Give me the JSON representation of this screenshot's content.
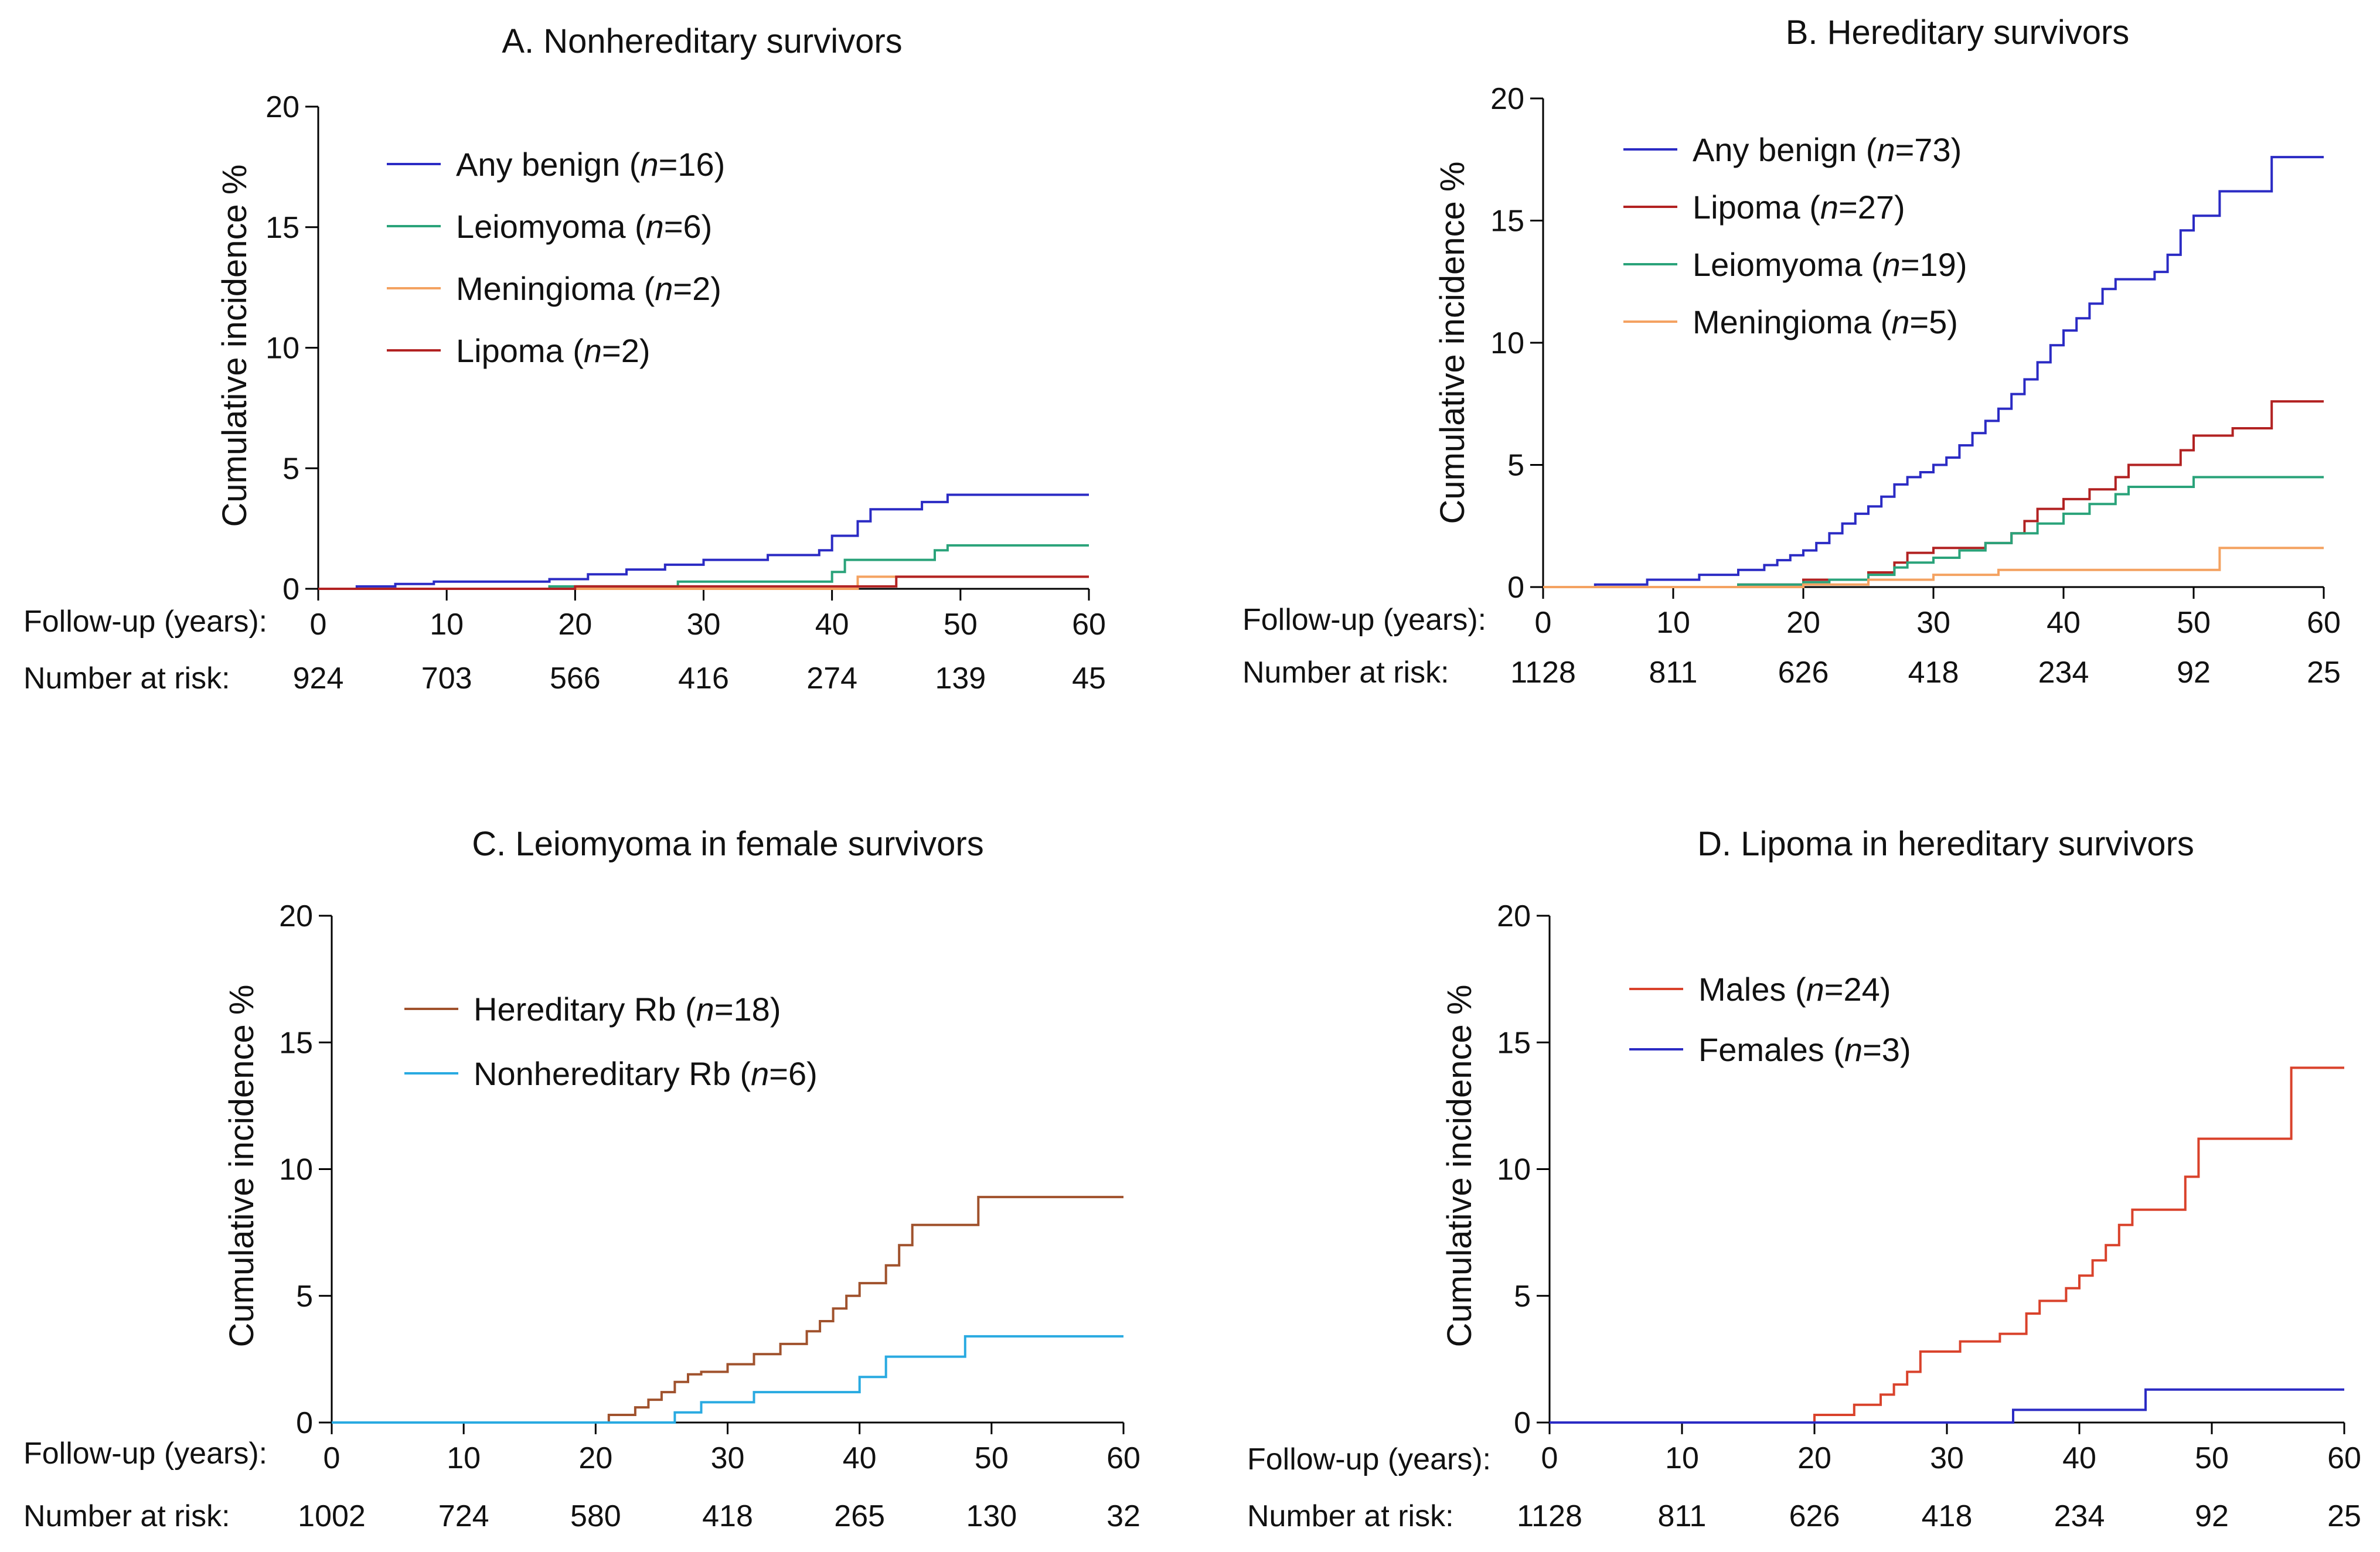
{
  "chart_data": [
    {
      "id": "A",
      "type": "line",
      "title": "A.  Nonhereditary survivors",
      "xlabel": "Follow-up (years):",
      "ylabel": "Cumulative incidence %",
      "xlim": [
        0,
        60
      ],
      "ylim": [
        0,
        20
      ],
      "xticks": [
        0,
        10,
        20,
        30,
        40,
        50,
        60
      ],
      "yticks": [
        0,
        5,
        10,
        15,
        20
      ],
      "risk_label": "Number at risk:",
      "number_at_risk": [
        "924",
        "703",
        "566",
        "416",
        "274",
        "139",
        "45"
      ],
      "series": [
        {
          "name": "Any benign",
          "n": "16",
          "color": "#2b2bc4",
          "x": [
            0,
            3,
            6,
            9,
            18,
            21,
            24,
            27,
            30,
            35,
            39,
            40,
            42,
            43,
            47,
            49,
            60
          ],
          "y": [
            0,
            0.1,
            0.2,
            0.3,
            0.4,
            0.6,
            0.8,
            1.0,
            1.2,
            1.4,
            1.6,
            2.2,
            2.8,
            3.3,
            3.6,
            3.9,
            3.9
          ]
        },
        {
          "name": "Leiomyoma",
          "n": "6",
          "color": "#2aa37a",
          "x": [
            0,
            18,
            28,
            40,
            41,
            48,
            49,
            60
          ],
          "y": [
            0,
            0.1,
            0.3,
            0.7,
            1.2,
            1.6,
            1.8,
            1.8
          ]
        },
        {
          "name": "Meningioma",
          "n": "2",
          "color": "#f4a261",
          "x": [
            0,
            42,
            60
          ],
          "y": [
            0,
            0.5,
            0.5
          ]
        },
        {
          "name": "Lipoma",
          "n": "2",
          "color": "#b22222",
          "x": [
            0,
            20,
            45,
            60
          ],
          "y": [
            0,
            0.1,
            0.5,
            0.5
          ]
        }
      ]
    },
    {
      "id": "B",
      "type": "line",
      "title": "B.  Hereditary survivors",
      "xlabel": "Follow-up (years):",
      "ylabel": "Cumulative incidence %",
      "xlim": [
        0,
        60
      ],
      "ylim": [
        0,
        20
      ],
      "xticks": [
        0,
        10,
        20,
        30,
        40,
        50,
        60
      ],
      "yticks": [
        0,
        5,
        10,
        15,
        20
      ],
      "risk_label": "Number at risk:",
      "number_at_risk": [
        "1128",
        "811",
        "626",
        "418",
        "234",
        "92",
        "25"
      ],
      "series": [
        {
          "name": "Any benign",
          "n": "73",
          "color": "#2b2bc4",
          "x": [
            0,
            4,
            8,
            12,
            15,
            17,
            18,
            19,
            20,
            21,
            22,
            23,
            24,
            25,
            26,
            27,
            28,
            29,
            30,
            31,
            32,
            33,
            34,
            35,
            36,
            37,
            38,
            39,
            40,
            41,
            42,
            43,
            44,
            45,
            46,
            47,
            48,
            49,
            50,
            51,
            52,
            56,
            60
          ],
          "y": [
            0,
            0.1,
            0.3,
            0.5,
            0.7,
            0.9,
            1.1,
            1.3,
            1.5,
            1.8,
            2.2,
            2.6,
            3.0,
            3.3,
            3.7,
            4.2,
            4.5,
            4.7,
            5.0,
            5.3,
            5.8,
            6.3,
            6.8,
            7.3,
            7.9,
            8.5,
            9.2,
            9.9,
            10.5,
            11.0,
            11.6,
            12.2,
            12.6,
            12.6,
            12.6,
            12.9,
            13.6,
            14.6,
            15.2,
            15.2,
            16.2,
            17.6,
            17.6
          ]
        },
        {
          "name": "Lipoma",
          "n": "27",
          "color": "#b22222",
          "x": [
            0,
            15,
            20,
            25,
            27,
            28,
            30,
            34,
            36,
            37,
            38,
            40,
            42,
            44,
            45,
            49,
            50,
            53,
            56,
            60
          ],
          "y": [
            0,
            0.1,
            0.3,
            0.6,
            1.0,
            1.4,
            1.6,
            1.8,
            2.2,
            2.7,
            3.2,
            3.6,
            4.0,
            4.5,
            5.0,
            5.6,
            6.2,
            6.5,
            7.6,
            7.6
          ]
        },
        {
          "name": "Leiomyoma",
          "n": "19",
          "color": "#2aa37a",
          "x": [
            0,
            15,
            20,
            22,
            25,
            27,
            28,
            30,
            32,
            34,
            36,
            38,
            40,
            42,
            44,
            45,
            50,
            60
          ],
          "y": [
            0,
            0.1,
            0.2,
            0.3,
            0.5,
            0.8,
            1.0,
            1.2,
            1.5,
            1.8,
            2.2,
            2.6,
            3.0,
            3.4,
            3.8,
            4.1,
            4.5,
            4.5
          ]
        },
        {
          "name": "Meningioma",
          "n": "5",
          "color": "#f4a261",
          "x": [
            0,
            20,
            25,
            30,
            35,
            52,
            60
          ],
          "y": [
            0,
            0.1,
            0.3,
            0.5,
            0.7,
            1.6,
            1.6
          ]
        }
      ]
    },
    {
      "id": "C",
      "type": "line",
      "title": "C.  Leiomyoma in female survivors",
      "xlabel": "Follow-up (years):",
      "ylabel": "Cumulative incidence %",
      "xlim": [
        0,
        60
      ],
      "ylim": [
        0,
        20
      ],
      "xticks": [
        0,
        10,
        20,
        30,
        40,
        50,
        60
      ],
      "yticks": [
        0,
        5,
        10,
        15,
        20
      ],
      "risk_label": "Number at risk:",
      "number_at_risk": [
        "1002",
        "724",
        "580",
        "418",
        "265",
        "130",
        "32"
      ],
      "series": [
        {
          "name": "Hereditary Rb",
          "n": "18",
          "color": "#a0522d",
          "x": [
            0,
            21,
            23,
            24,
            25,
            26,
            27,
            28,
            30,
            32,
            34,
            36,
            37,
            38,
            39,
            40,
            42,
            43,
            44,
            49,
            60
          ],
          "y": [
            0,
            0.3,
            0.6,
            0.9,
            1.2,
            1.6,
            1.9,
            2.0,
            2.3,
            2.7,
            3.1,
            3.6,
            4.0,
            4.5,
            5.0,
            5.5,
            6.2,
            7.0,
            7.8,
            8.9,
            8.9
          ]
        },
        {
          "name": "Nonhereditary Rb",
          "n": "6",
          "color": "#29aae1",
          "x": [
            0,
            26,
            28,
            32,
            40,
            42,
            48,
            60
          ],
          "y": [
            0,
            0.4,
            0.8,
            1.2,
            1.8,
            2.6,
            3.4,
            3.4
          ]
        }
      ]
    },
    {
      "id": "D",
      "type": "line",
      "title": "D.  Lipoma in hereditary survivors",
      "xlabel": "Follow-up (years):",
      "ylabel": "Cumulative incidence %",
      "xlim": [
        0,
        60
      ],
      "ylim": [
        0,
        20
      ],
      "xticks": [
        0,
        10,
        20,
        30,
        40,
        50,
        60
      ],
      "yticks": [
        0,
        5,
        10,
        15,
        20
      ],
      "risk_label": "Number at risk:",
      "number_at_risk": [
        "1128",
        "811",
        "626",
        "418",
        "234",
        "92",
        "25"
      ],
      "series": [
        {
          "name": "Males",
          "n": "24",
          "color": "#d9422b",
          "x": [
            0,
            20,
            23,
            25,
            26,
            27,
            28,
            31,
            34,
            36,
            37,
            39,
            40,
            41,
            42,
            43,
            44,
            48,
            49,
            56,
            60
          ],
          "y": [
            0,
            0.3,
            0.7,
            1.1,
            1.5,
            2.0,
            2.8,
            3.2,
            3.5,
            4.3,
            4.8,
            5.3,
            5.8,
            6.4,
            7.0,
            7.8,
            8.4,
            9.7,
            11.2,
            14.0,
            14.0
          ]
        },
        {
          "name": "Females",
          "n": "3",
          "color": "#2b2bc4",
          "x": [
            0,
            35,
            45,
            60
          ],
          "y": [
            0,
            0.5,
            1.3,
            1.3
          ]
        }
      ]
    }
  ]
}
